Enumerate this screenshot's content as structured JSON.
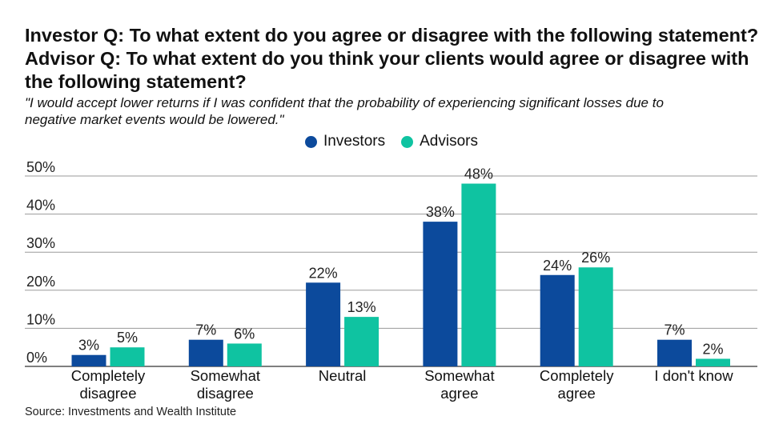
{
  "title_lines": [
    "Investor Q: To what extent do you agree or disagree with the following statement?",
    "Advisor Q: To what extent do you think your clients would agree or disagree with",
    "the following statement?"
  ],
  "subtitle_lines": [
    "\"I would accept lower returns if I was confident that the probability of experiencing significant losses due to",
    "negative market events would be lowered.\""
  ],
  "source": "Source: Investments and Wealth Institute",
  "colors": {
    "investors": "#0c4a9c",
    "advisors": "#0fc3a1"
  },
  "chart_data": {
    "type": "bar",
    "title": "",
    "xlabel": "",
    "ylabel": "",
    "ylim": [
      0,
      50
    ],
    "yticks": [
      0,
      10,
      20,
      30,
      40,
      50
    ],
    "ytick_labels": [
      "0%",
      "10%",
      "20%",
      "30%",
      "40%",
      "50%"
    ],
    "legend_position": "top-center",
    "grid": true,
    "categories": [
      [
        "Completely",
        "disagree"
      ],
      [
        "Somewhat",
        "disagree"
      ],
      [
        "Neutral"
      ],
      [
        "Somewhat",
        "agree"
      ],
      [
        "Completely",
        "agree"
      ],
      [
        "I don't know"
      ]
    ],
    "series": [
      {
        "name": "Investors",
        "color": "#0c4a9c",
        "values": [
          3,
          7,
          22,
          38,
          24,
          7
        ],
        "labels": [
          "3%",
          "7%",
          "22%",
          "38%",
          "24%",
          "7%"
        ]
      },
      {
        "name": "Advisors",
        "color": "#0fc3a1",
        "values": [
          5,
          6,
          13,
          48,
          26,
          2
        ],
        "labels": [
          "5%",
          "6%",
          "13%",
          "48%",
          "26%",
          "2%"
        ]
      }
    ]
  }
}
